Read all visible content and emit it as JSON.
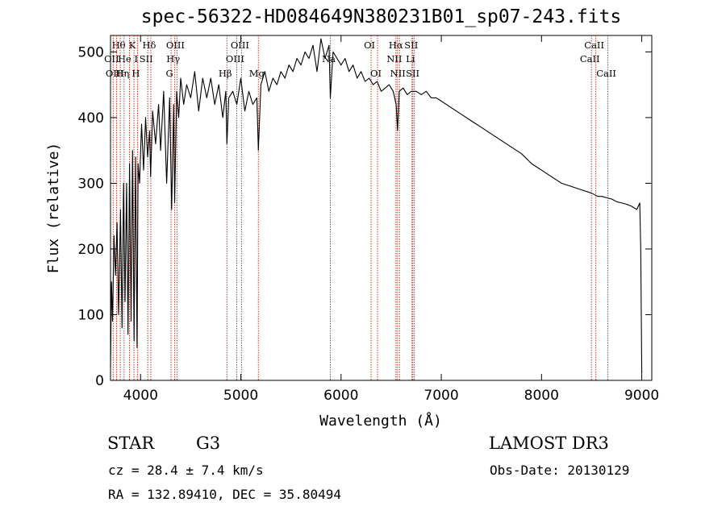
{
  "title": "spec-56322-HD084649N380231B01_sp07-243.fits",
  "info": {
    "object_class": "STAR",
    "subclass": "G3",
    "survey": "LAMOST DR3",
    "cz": "cz = 28.4 ± 7.4 km/s",
    "obs_date": "Obs-Date: 20130129",
    "radec": "RA = 132.89410, DEC =  35.80494"
  },
  "chart_data": {
    "type": "line",
    "title": "spec-56322-HD084649N380231B01_sp07-243.fits",
    "xlabel": "Wavelength (Å)",
    "ylabel": "Flux (relative)",
    "xlim": [
      3700,
      9100
    ],
    "ylim": [
      0,
      525
    ],
    "x_ticks": [
      4000,
      5000,
      6000,
      7000,
      8000,
      9000
    ],
    "y_ticks": [
      0,
      100,
      200,
      300,
      400,
      500
    ],
    "series": [
      {
        "name": "flux",
        "x": [
          3700,
          3710,
          3720,
          3735,
          3750,
          3765,
          3780,
          3800,
          3815,
          3830,
          3845,
          3860,
          3875,
          3890,
          3905,
          3920,
          3935,
          3950,
          3965,
          3975,
          3990,
          4010,
          4030,
          4050,
          4070,
          4090,
          4100,
          4120,
          4150,
          4180,
          4200,
          4230,
          4260,
          4290,
          4310,
          4330,
          4340,
          4360,
          4380,
          4400,
          4430,
          4460,
          4500,
          4540,
          4580,
          4620,
          4660,
          4700,
          4740,
          4780,
          4820,
          4850,
          4861,
          4880,
          4920,
          4960,
          5000,
          5040,
          5080,
          5120,
          5160,
          5175,
          5200,
          5240,
          5280,
          5320,
          5360,
          5400,
          5440,
          5480,
          5520,
          5560,
          5600,
          5640,
          5680,
          5720,
          5760,
          5800,
          5840,
          5880,
          5893,
          5920,
          5960,
          6000,
          6040,
          6080,
          6120,
          6160,
          6200,
          6240,
          6280,
          6320,
          6360,
          6400,
          6440,
          6480,
          6520,
          6550,
          6563,
          6580,
          6620,
          6660,
          6700,
          6750,
          6800,
          6850,
          6900,
          6950,
          7000,
          7100,
          7200,
          7300,
          7400,
          7500,
          7600,
          7700,
          7800,
          7900,
          8000,
          8100,
          8200,
          8300,
          8400,
          8500,
          8560,
          8600,
          8650,
          8700,
          8750,
          8800,
          8850,
          8900,
          8950,
          8980,
          8990,
          9000
        ],
        "values": [
          20,
          150,
          90,
          220,
          160,
          240,
          100,
          260,
          80,
          300,
          120,
          300,
          70,
          330,
          90,
          350,
          60,
          340,
          50,
          330,
          300,
          390,
          320,
          400,
          340,
          380,
          310,
          410,
          360,
          420,
          350,
          440,
          300,
          430,
          260,
          420,
          270,
          440,
          400,
          460,
          420,
          450,
          430,
          470,
          410,
          460,
          430,
          460,
          420,
          450,
          400,
          440,
          360,
          430,
          440,
          420,
          460,
          410,
          440,
          420,
          430,
          350,
          450,
          470,
          440,
          460,
          450,
          470,
          460,
          480,
          470,
          490,
          480,
          500,
          490,
          510,
          470,
          520,
          490,
          510,
          430,
          500,
          490,
          480,
          490,
          470,
          480,
          460,
          470,
          455,
          460,
          450,
          455,
          440,
          445,
          450,
          440,
          420,
          380,
          440,
          445,
          435,
          440,
          440,
          435,
          440,
          430,
          430,
          425,
          415,
          405,
          395,
          385,
          375,
          365,
          355,
          345,
          330,
          320,
          310,
          300,
          295,
          290,
          285,
          280,
          280,
          278,
          276,
          272,
          270,
          268,
          265,
          260,
          270,
          200,
          10
        ]
      }
    ],
    "lines": [
      {
        "name": "Hθ",
        "wavelength": 3797,
        "row": 0
      },
      {
        "name": "OII",
        "wavelength": 3727,
        "row": 1
      },
      {
        "name": "OIII",
        "wavelength": 3760,
        "row": 2
      },
      {
        "name": "He I",
        "wavelength": 3889,
        "row": 1
      },
      {
        "name": "K",
        "wavelength": 3934,
        "row": 0
      },
      {
        "name": "H",
        "wavelength": 3969,
        "row": 2
      },
      {
        "name": "SII",
        "wavelength": 4072,
        "row": 1
      },
      {
        "name": "Hδ",
        "wavelength": 4102,
        "row": 0
      },
      {
        "name": "Hη",
        "wavelength": 3835,
        "row": 2
      },
      {
        "name": "G",
        "wavelength": 4304,
        "row": 2
      },
      {
        "name": "Hγ",
        "wavelength": 4341,
        "row": 1
      },
      {
        "name": "OIII",
        "wavelength": 4363,
        "row": 0
      },
      {
        "name": "Hβ",
        "wavelength": 4861,
        "row": 2
      },
      {
        "name": "OIII",
        "wavelength": 4959,
        "row": 1
      },
      {
        "name": "OIII",
        "wavelength": 5007,
        "row": 0
      },
      {
        "name": "Mg",
        "wavelength": 5175,
        "row": 2
      },
      {
        "name": "Na",
        "wavelength": 5893,
        "row": 1
      },
      {
        "name": "OI",
        "wavelength": 6300,
        "row": 0
      },
      {
        "name": "OI",
        "wavelength": 6364,
        "row": 2
      },
      {
        "name": "NII",
        "wavelength": 6548,
        "row": 1
      },
      {
        "name": "Hα",
        "wavelength": 6563,
        "row": 0
      },
      {
        "name": "NII",
        "wavelength": 6583,
        "row": 2
      },
      {
        "name": "SII",
        "wavelength": 6716,
        "row": 0
      },
      {
        "name": "Li",
        "wavelength": 6708,
        "row": 1
      },
      {
        "name": "SII",
        "wavelength": 6731,
        "row": 2
      },
      {
        "name": "CaII",
        "wavelength": 8498,
        "row": 1
      },
      {
        "name": "CaII",
        "wavelength": 8542,
        "row": 0
      },
      {
        "name": "CaII",
        "wavelength": 8662,
        "row": 2
      }
    ]
  }
}
